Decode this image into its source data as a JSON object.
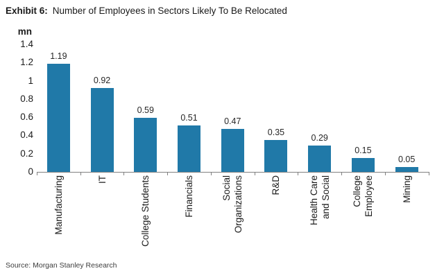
{
  "title": {
    "prefix": "Exhibit 6:",
    "text": "Number of Employees in Sectors Likely To Be Relocated"
  },
  "unit_label": "mn",
  "source": "Source: Morgan Stanley Research",
  "colors": {
    "bar": "#2079A8",
    "axis": "#808080",
    "text": "#1a1a1a"
  },
  "chart_data": {
    "type": "bar",
    "title": "Exhibit 6: Number of Employees in Sectors Likely To Be Relocated",
    "categories": [
      "Manufacturing",
      "IT",
      "College Students",
      "Financials",
      "Social\nOrganizations",
      "R&D",
      "Health Care\nand Social",
      "College\nEmployee",
      "Mining"
    ],
    "values": [
      1.19,
      0.92,
      0.59,
      0.51,
      0.47,
      0.35,
      0.29,
      0.15,
      0.05
    ],
    "bar_labels": [
      "1.19",
      "0.92",
      "0.59",
      "0.51",
      "0.47",
      "0.35",
      "0.29",
      "0.15",
      "0.05"
    ],
    "xlabel": "",
    "ylabel": "mn",
    "ylim": [
      0,
      1.4
    ],
    "yticks": [
      0,
      0.2,
      0.4,
      0.6,
      0.8,
      1,
      1.2,
      1.4
    ],
    "ytick_labels": [
      "0",
      "0.2",
      "0.4",
      "0.6",
      "0.8",
      "1",
      "1.2",
      "1.4"
    ],
    "grid": false,
    "legend": false
  }
}
